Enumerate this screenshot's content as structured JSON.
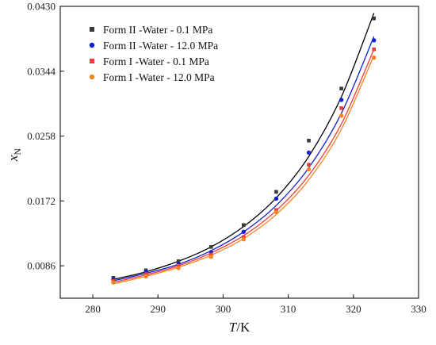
{
  "chart_data": {
    "type": "scatter",
    "title": "",
    "xlabel": {
      "main": "T",
      "unit": "/K"
    },
    "ylabel": {
      "main": "x",
      "sub": "N"
    },
    "xlim": [
      275,
      330
    ],
    "ylim": [
      0.0043,
      0.043
    ],
    "xticks": [
      280,
      290,
      300,
      310,
      320,
      330
    ],
    "xtick_labels": [
      "280",
      "290",
      "300",
      "310",
      "320",
      "330"
    ],
    "yticks": [
      0.0086,
      0.0172,
      0.0258,
      0.0344,
      0.043
    ],
    "ytick_labels": [
      "0.0086",
      "0.0172",
      "0.0258",
      "0.0344",
      "0.0430"
    ],
    "grid": false,
    "legend_position": "top-left",
    "x": [
      283.15,
      288.15,
      293.15,
      298.15,
      303.15,
      308.15,
      313.15,
      318.15,
      323.15
    ],
    "series": [
      {
        "name": "Form II -Water - 0.1 MPa",
        "marker": "square",
        "color": "#3a3a3a",
        "fit_color": "#000000",
        "values": [
          0.007,
          0.008,
          0.0092,
          0.0111,
          0.014,
          0.0184,
          0.0252,
          0.0321,
          0.0414
        ],
        "fit": [
          0.0068,
          0.0078,
          0.0092,
          0.0111,
          0.0138,
          0.0176,
          0.0231,
          0.031,
          0.0421
        ]
      },
      {
        "name": "Form II -Water - 12.0 MPa",
        "marker": "circle",
        "color": "#1020d0",
        "fit_color": "#1020d0",
        "values": [
          0.0068,
          0.0078,
          0.0088,
          0.0104,
          0.0131,
          0.0175,
          0.0236,
          0.0306,
          0.0385
        ],
        "fit": [
          0.0066,
          0.0076,
          0.0088,
          0.0106,
          0.0131,
          0.0166,
          0.0216,
          0.0288,
          0.039
        ]
      },
      {
        "name": "Form I -Water - 0.1 MPa",
        "marker": "square",
        "color": "#ee3c3c",
        "fit_color": "#ee3c3c",
        "values": [
          0.0066,
          0.0075,
          0.0086,
          0.0101,
          0.0124,
          0.016,
          0.022,
          0.0295,
          0.0373
        ],
        "fit": [
          0.0064,
          0.0074,
          0.0086,
          0.0103,
          0.0126,
          0.0159,
          0.0206,
          0.0274,
          0.0373
        ]
      },
      {
        "name": "Form I -Water - 12.0 MPa",
        "marker": "circle",
        "color": "#f5841f",
        "fit_color": "#f5841f",
        "values": [
          0.0064,
          0.0072,
          0.0083,
          0.0098,
          0.0121,
          0.0157,
          0.0214,
          0.0285,
          0.0362
        ],
        "fit": [
          0.0062,
          0.0072,
          0.0084,
          0.01,
          0.0122,
          0.0154,
          0.02,
          0.0267,
          0.0365
        ]
      }
    ]
  }
}
